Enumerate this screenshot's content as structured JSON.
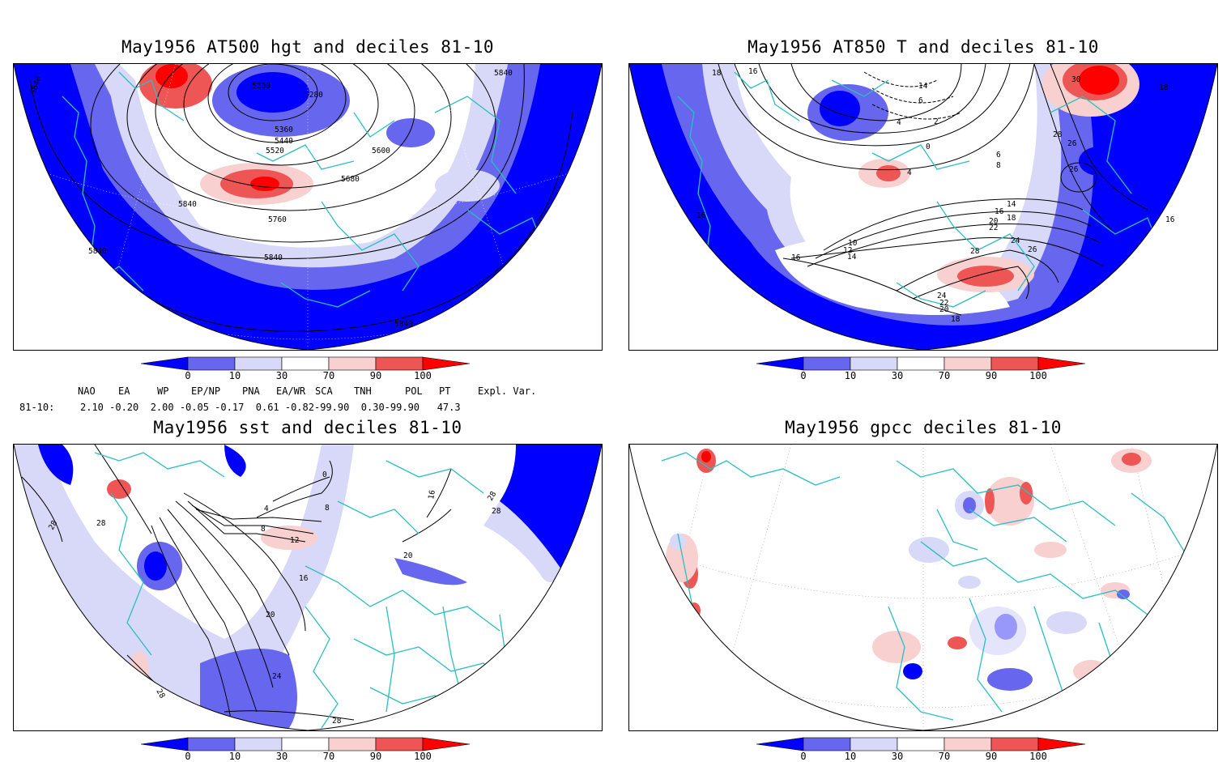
{
  "panels": [
    {
      "title": "May1956 AT500 hgt and deciles 81-10",
      "contour_labels": [
        "5840",
        "5200",
        "5280",
        "5360",
        "5440",
        "5520",
        "5600",
        "5680",
        "5760",
        "5840",
        "5840",
        "5840",
        "5840",
        "5840"
      ]
    },
    {
      "title": "May1956 AT850 T and deciles 81-10",
      "contour_labels": [
        "18",
        "16",
        "14",
        "6",
        "4",
        "2",
        "0",
        "4",
        "6",
        "8",
        "16",
        "10",
        "12",
        "14",
        "16",
        "14",
        "16",
        "18",
        "20",
        "22",
        "24",
        "26",
        "28",
        "24",
        "22",
        "20",
        "18",
        "28",
        "26",
        "30",
        "26",
        "18",
        "16"
      ]
    },
    {
      "title": "May1956 sst and deciles 81-10",
      "contour_labels": [
        "28",
        "28",
        "0",
        "4",
        "8",
        "8",
        "12",
        "16",
        "20",
        "20",
        "24",
        "28",
        "28",
        "16",
        "28",
        "28"
      ]
    },
    {
      "title": "May1956 gpcc deciles 81-10",
      "contour_labels": []
    }
  ],
  "colorbar": {
    "ticks": [
      "0",
      "10",
      "30",
      "70",
      "90",
      "100"
    ],
    "colors": [
      "#0000ff",
      "#6666ee",
      "#d8d8f8",
      "#ffffff",
      "#f8d0d0",
      "#ee5555",
      "#ff0000"
    ]
  },
  "teleconnections": {
    "headers": [
      "NAO",
      "EA",
      "WP",
      "EP/NP",
      "PNA",
      "EA/WR",
      "SCA",
      "TNH",
      "POL",
      "PT",
      "Expl. Var."
    ],
    "row_label": "81-10:",
    "values_text": "2.10 -0.20  2.00 -0.05 -0.17  0.61 -0.82-99.90  0.30-99.90   47.3"
  }
}
